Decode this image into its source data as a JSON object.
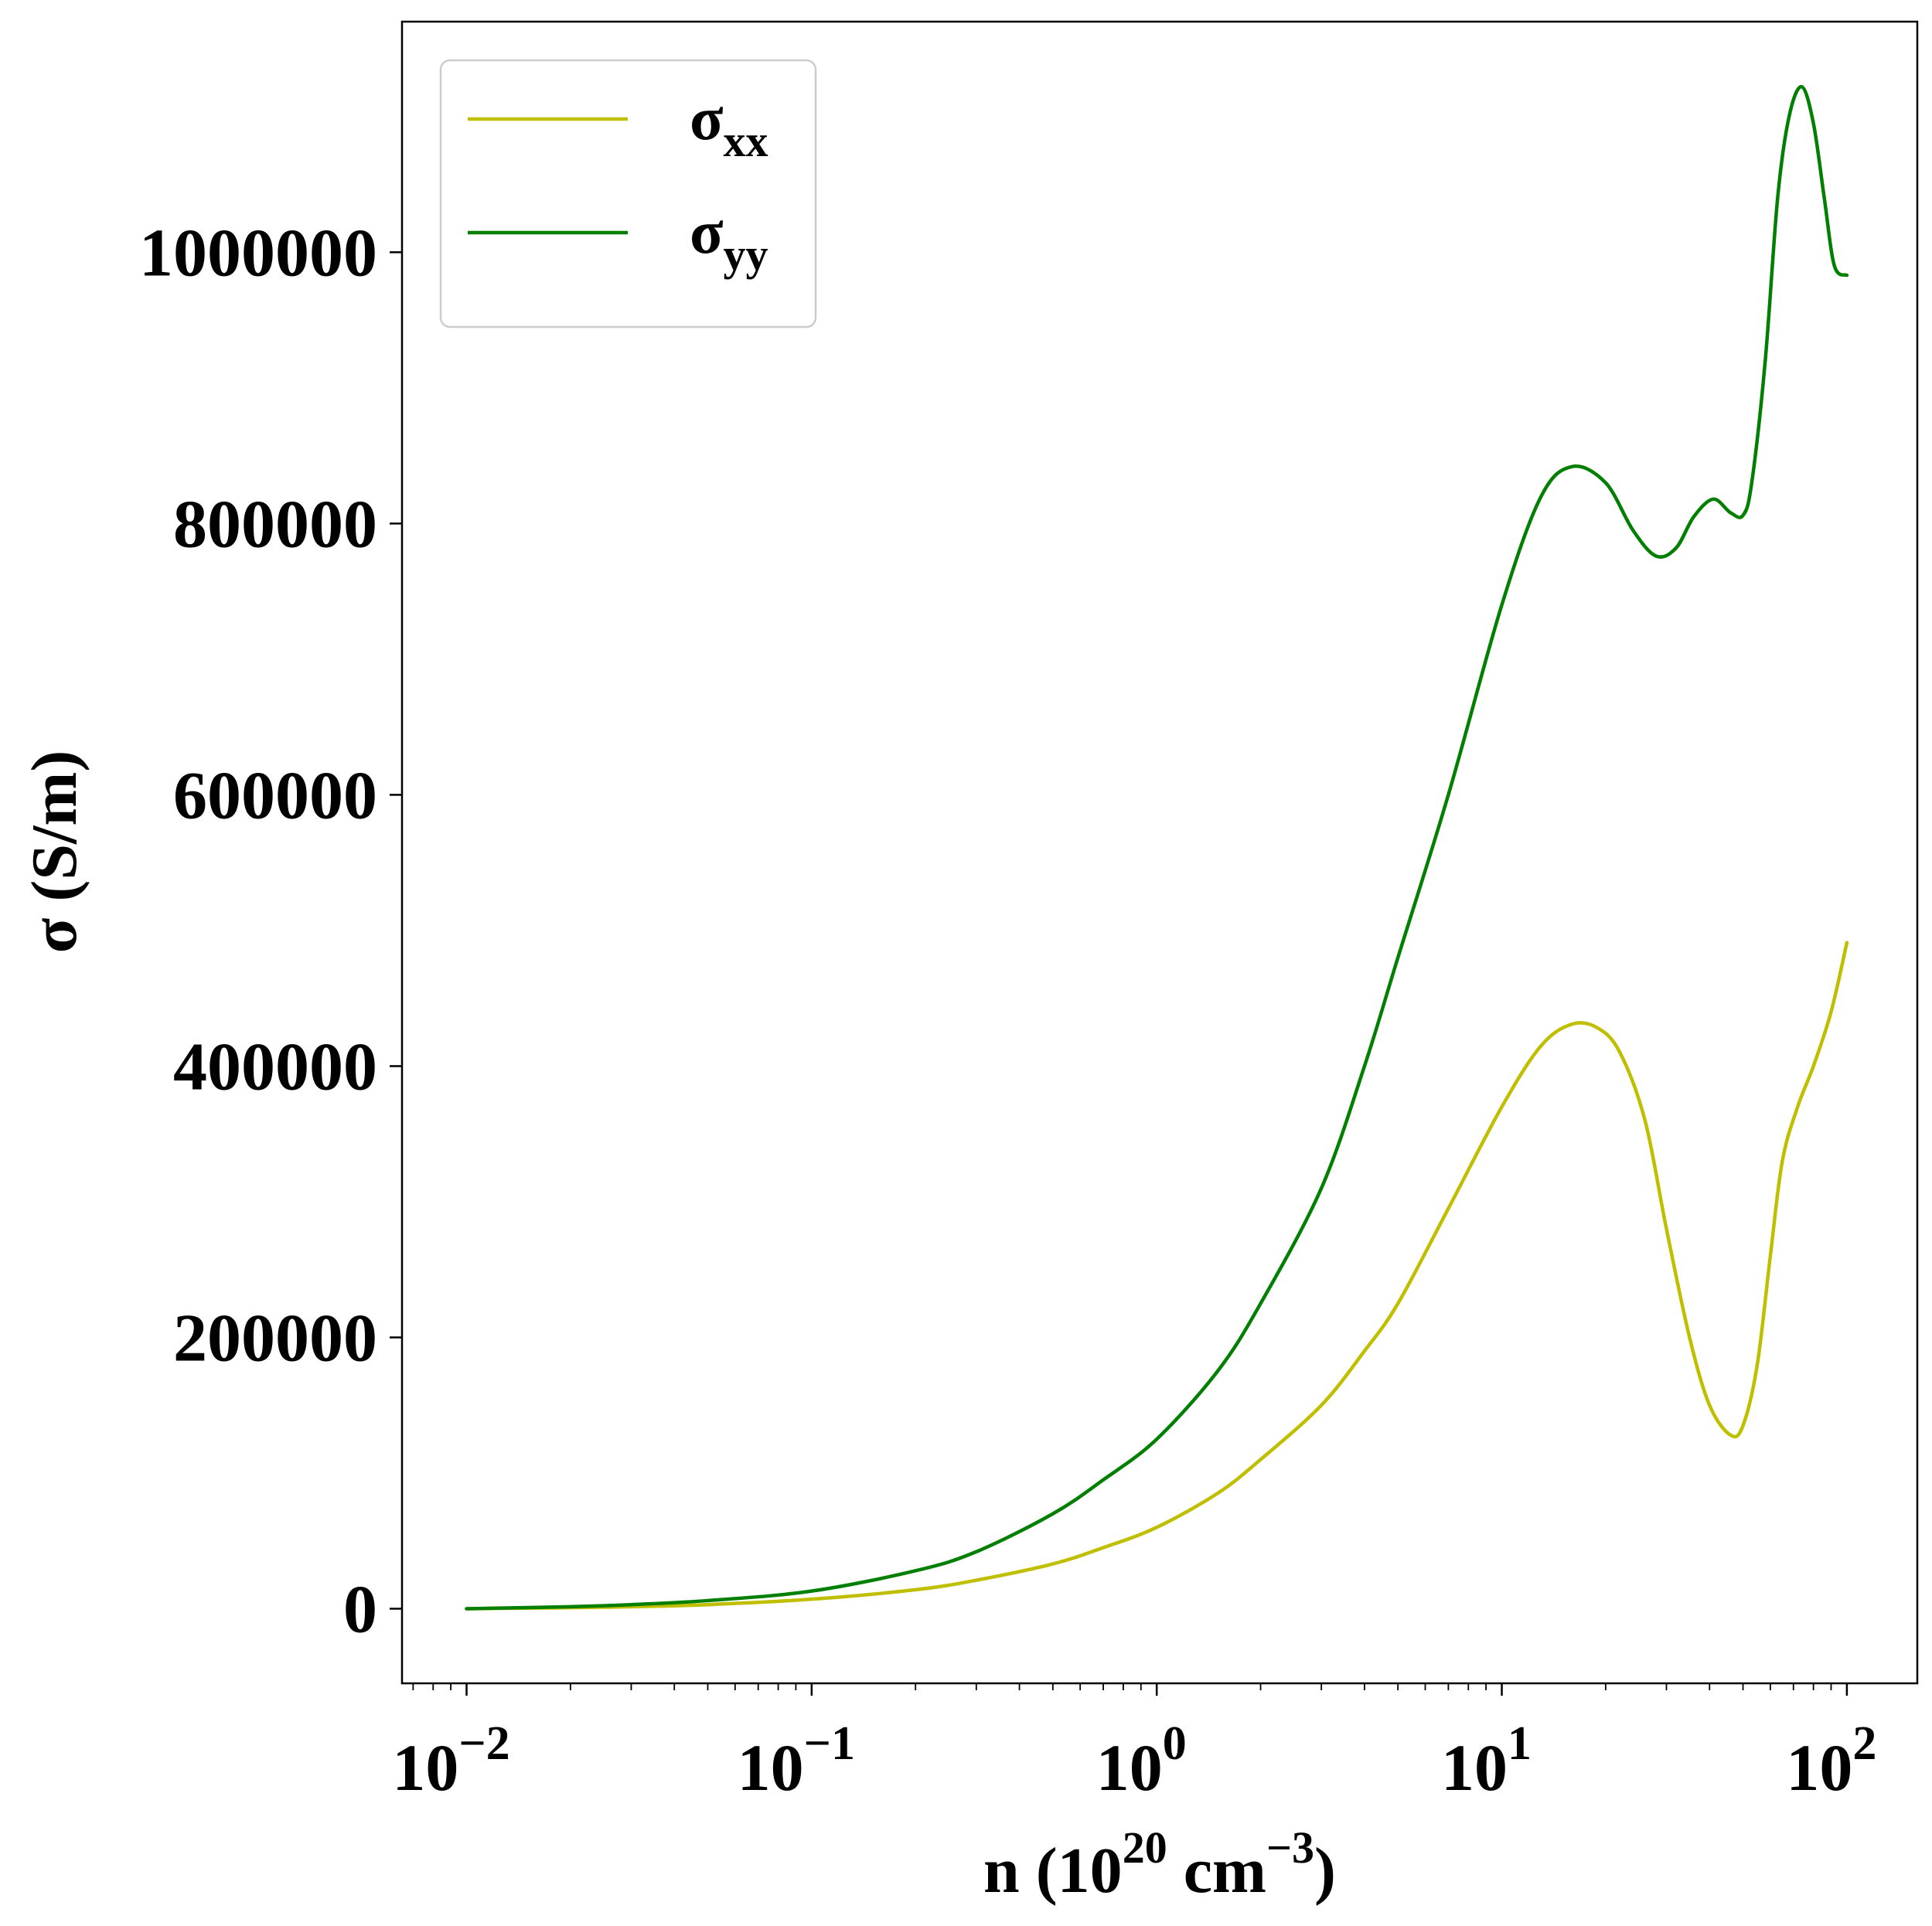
{
  "chart_data": {
    "type": "line",
    "xscale": "log",
    "xlim": [
      0.0065,
      160
    ],
    "ylim": [
      -55000,
      1170000
    ],
    "grid": false,
    "legend_position": "top-left",
    "xlabel": {
      "main": "n (10",
      "sup1": "20",
      "mid": " cm",
      "sup2": "−3",
      "end": ")"
    },
    "ylabel": "σ (S/m)",
    "x_ticks": [
      {
        "value": 0.01,
        "base": "10",
        "exp": "−2"
      },
      {
        "value": 0.1,
        "base": "10",
        "exp": "−1"
      },
      {
        "value": 1,
        "base": "10",
        "exp": "0"
      },
      {
        "value": 10,
        "base": "10",
        "exp": "1"
      },
      {
        "value": 100,
        "base": "10",
        "exp": "2"
      }
    ],
    "y_ticks": [
      {
        "value": 0,
        "label": "0"
      },
      {
        "value": 200000,
        "label": "200000"
      },
      {
        "value": 400000,
        "label": "400000"
      },
      {
        "value": 600000,
        "label": "600000"
      },
      {
        "value": 800000,
        "label": "800000"
      },
      {
        "value": 1000000,
        "label": "1000000"
      }
    ],
    "series": [
      {
        "name": "σ",
        "subscript": "xx",
        "color": "#bfbf00",
        "points": [
          [
            0.01,
            0
          ],
          [
            0.02,
            800
          ],
          [
            0.03,
            1500
          ],
          [
            0.05,
            3000
          ],
          [
            0.1,
            7000
          ],
          [
            0.2,
            14000
          ],
          [
            0.3,
            21000
          ],
          [
            0.5,
            33000
          ],
          [
            0.7,
            45000
          ],
          [
            1.0,
            60000
          ],
          [
            1.5,
            85000
          ],
          [
            2.0,
            110000
          ],
          [
            3.0,
            150000
          ],
          [
            4.0,
            190000
          ],
          [
            5.0,
            225000
          ],
          [
            7.0,
            295000
          ],
          [
            10.0,
            370000
          ],
          [
            13.0,
            415000
          ],
          [
            16.0,
            431000
          ],
          [
            19.0,
            428000
          ],
          [
            22.0,
            410000
          ],
          [
            26.0,
            360000
          ],
          [
            30.0,
            280000
          ],
          [
            35.0,
            200000
          ],
          [
            40.0,
            150000
          ],
          [
            46.0,
            128000
          ],
          [
            50.0,
            135000
          ],
          [
            55.0,
            180000
          ],
          [
            60.0,
            260000
          ],
          [
            65.0,
            330000
          ],
          [
            72.0,
            370000
          ],
          [
            80.0,
            400000
          ],
          [
            90.0,
            440000
          ],
          [
            100.0,
            491000
          ]
        ]
      },
      {
        "name": "σ",
        "subscript": "yy",
        "color": "#007f00",
        "points": [
          [
            0.01,
            0
          ],
          [
            0.02,
            1500
          ],
          [
            0.03,
            3000
          ],
          [
            0.05,
            6000
          ],
          [
            0.1,
            13000
          ],
          [
            0.2,
            28000
          ],
          [
            0.3,
            42000
          ],
          [
            0.5,
            70000
          ],
          [
            0.7,
            95000
          ],
          [
            1.0,
            125000
          ],
          [
            1.5,
            175000
          ],
          [
            2.0,
            225000
          ],
          [
            3.0,
            310000
          ],
          [
            4.0,
            400000
          ],
          [
            5.0,
            480000
          ],
          [
            7.0,
            600000
          ],
          [
            10.0,
            740000
          ],
          [
            13.0,
            820000
          ],
          [
            16.0,
            842000
          ],
          [
            20.0,
            830000
          ],
          [
            24.0,
            795000
          ],
          [
            28.0,
            776000
          ],
          [
            32.0,
            782000
          ],
          [
            36.0,
            805000
          ],
          [
            41.0,
            818000
          ],
          [
            46.0,
            808000
          ],
          [
            50.0,
            806000
          ],
          [
            53.0,
            830000
          ],
          [
            58.0,
            920000
          ],
          [
            63.0,
            1040000
          ],
          [
            68.0,
            1100000
          ],
          [
            74.0,
            1122000
          ],
          [
            80.0,
            1095000
          ],
          [
            86.0,
            1040000
          ],
          [
            92.0,
            990000
          ],
          [
            100.0,
            983000
          ]
        ]
      }
    ]
  }
}
